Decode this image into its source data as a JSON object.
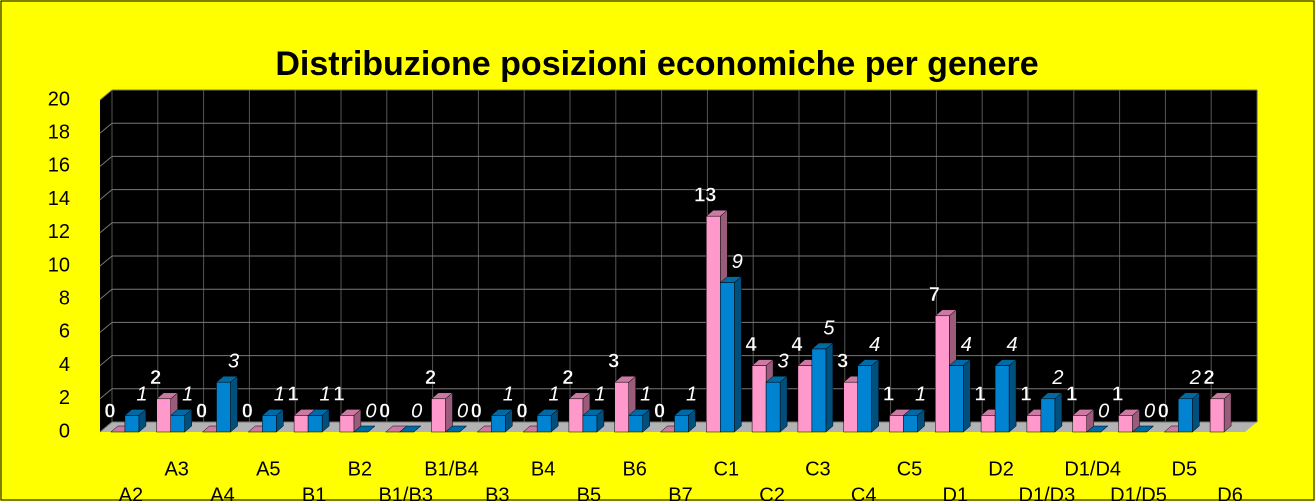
{
  "chart_data": {
    "type": "bar3d",
    "title": "Distribuzione posizioni economiche per genere",
    "categories": [
      "A2",
      "A3",
      "A4",
      "A5",
      "B1",
      "B2",
      "B1/B3",
      "B1/B4",
      "B3",
      "B4",
      "B5",
      "B6",
      "B7",
      "C1",
      "C2",
      "C3",
      "C4",
      "C5",
      "D1",
      "D2",
      "D1/D3",
      "D1/D4",
      "D1/D5",
      "D5",
      "D6"
    ],
    "series": [
      {
        "color": "#ff99cc",
        "values": [
          0,
          2,
          0,
          0,
          1,
          1,
          0,
          2,
          0,
          0,
          2,
          3,
          0,
          13,
          4,
          4,
          3,
          1,
          7,
          1,
          1,
          1,
          1,
          0,
          2
        ]
      },
      {
        "color": "#0084d1",
        "values": [
          1,
          1,
          3,
          1,
          1,
          0,
          0,
          0,
          1,
          1,
          1,
          1,
          1,
          9,
          3,
          5,
          4,
          1,
          4,
          4,
          2,
          0,
          0,
          2,
          null
        ]
      }
    ],
    "ylim": [
      0,
      20
    ],
    "yticks": [
      0,
      2,
      4,
      6,
      8,
      10,
      12,
      14,
      16,
      18,
      20
    ],
    "grid": true
  }
}
